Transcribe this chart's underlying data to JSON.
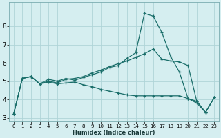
{
  "xlabel": "Humidex (Indice chaleur)",
  "background_color": "#d5eef0",
  "grid_color": "#afd4d8",
  "line_color": "#1a6e6a",
  "xlim": [
    -0.5,
    23.5
  ],
  "ylim": [
    2.8,
    9.3
  ],
  "yticks": [
    3,
    4,
    5,
    6,
    7,
    8
  ],
  "xticks": [
    0,
    1,
    2,
    3,
    4,
    5,
    6,
    7,
    8,
    9,
    10,
    11,
    12,
    13,
    14,
    15,
    16,
    17,
    18,
    19,
    20,
    21,
    22,
    23
  ],
  "line1_x": [
    0,
    1,
    2,
    3,
    4,
    5,
    6,
    7,
    8,
    9,
    10,
    11,
    12,
    13,
    14,
    15,
    16,
    17,
    18,
    19,
    20,
    21,
    22,
    23
  ],
  "line1_y": [
    3.2,
    5.15,
    5.25,
    4.85,
    5.1,
    5.0,
    5.15,
    5.05,
    5.2,
    5.35,
    5.5,
    5.75,
    5.85,
    6.25,
    6.55,
    8.7,
    8.55,
    7.65,
    6.35,
    5.5,
    4.05,
    3.8,
    3.3,
    4.1
  ],
  "line2_x": [
    0,
    1,
    2,
    3,
    4,
    5,
    6,
    7,
    8,
    9,
    10,
    11,
    12,
    13,
    14,
    15,
    16,
    17,
    18,
    19,
    20,
    21,
    22,
    23
  ],
  "line2_y": [
    3.2,
    5.15,
    5.25,
    4.85,
    5.0,
    4.9,
    5.1,
    5.15,
    5.25,
    5.45,
    5.6,
    5.8,
    5.95,
    6.1,
    6.3,
    6.5,
    6.75,
    6.2,
    6.1,
    6.05,
    5.85,
    3.9,
    3.3,
    4.1
  ],
  "line3_x": [
    0,
    1,
    2,
    3,
    4,
    5,
    6,
    7,
    8,
    9,
    10,
    11,
    12,
    13,
    14,
    15,
    16,
    17,
    18,
    19,
    20,
    21,
    22,
    23
  ],
  "line3_y": [
    3.2,
    5.15,
    5.25,
    4.85,
    4.95,
    4.85,
    4.9,
    4.95,
    4.8,
    4.7,
    4.55,
    4.45,
    4.35,
    4.25,
    4.2,
    4.2,
    4.2,
    4.2,
    4.2,
    4.2,
    4.05,
    3.9,
    3.3,
    4.1
  ],
  "xlabel_fontsize": 6.0,
  "tick_fontsize_x": 5.0,
  "tick_fontsize_y": 6.5
}
